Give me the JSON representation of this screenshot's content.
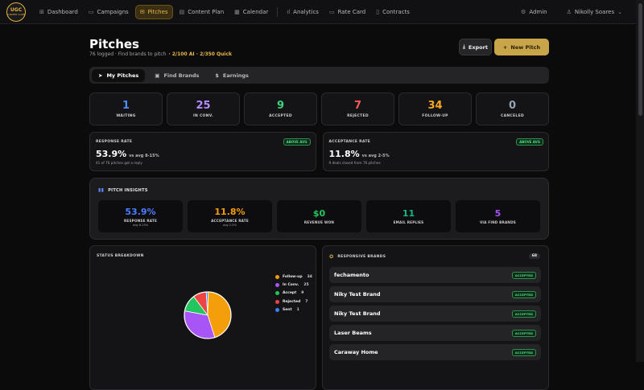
{
  "logo": {
    "line1": "UGC",
    "line2": "CAREER CORE"
  },
  "nav": [
    {
      "label": "Dashboard",
      "icon": "⊞"
    },
    {
      "label": "Campaigns",
      "icon": "▭"
    },
    {
      "label": "Pitches",
      "icon": "✉"
    },
    {
      "label": "Content Plan",
      "icon": "▤"
    },
    {
      "label": "Calendar",
      "icon": "▦"
    },
    {
      "label": "Analytics",
      "icon": "ıl"
    },
    {
      "label": "Rate Card",
      "icon": "▭"
    },
    {
      "label": "Contracts",
      "icon": "▯"
    }
  ],
  "admin_label": "Admin",
  "user_label": "Nikolly Soares",
  "user_caret": "⌄",
  "header": {
    "title": "Pitches",
    "subtitle": "76 logged · Find brands to pitch",
    "quota": "· 2/100 AI · 2/350 Quick",
    "export_label": "Export",
    "new_label": "New Pitch"
  },
  "tabs": [
    {
      "label": "My Pitches",
      "icon": "➤"
    },
    {
      "label": "Find Brands",
      "icon": "▣"
    },
    {
      "label": "Earnings",
      "icon": "$"
    }
  ],
  "stats": [
    {
      "value": "1",
      "label": "WAITING",
      "color": "#4d8dff"
    },
    {
      "value": "25",
      "label": "IN CONV.",
      "color": "#b28bff"
    },
    {
      "value": "9",
      "label": "ACCEPTED",
      "color": "#3fd37a"
    },
    {
      "value": "7",
      "label": "REJECTED",
      "color": "#ff5a5a"
    },
    {
      "value": "34",
      "label": "FOLLOW-UP",
      "color": "#f5a623"
    },
    {
      "value": "0",
      "label": "CANCELED",
      "color": "#9aa3b2"
    }
  ],
  "rates": [
    {
      "label": "RESPONSE RATE",
      "badge": "ABOVE AVG",
      "value": "53.9%",
      "compare": "vs avg 8-15%",
      "note": "41 of 76 pitches got a reply"
    },
    {
      "label": "ACCEPTANCE RATE",
      "badge": "ABOVE AVG",
      "value": "11.8%",
      "compare": "vs avg 2-5%",
      "note": "9 deals closed from 76 pitches"
    }
  ],
  "insights": {
    "title": "PITCH INSIGHTS",
    "items": [
      {
        "value": "53.9%",
        "label": "RESPONSE RATE",
        "sub": "avg 8-15%",
        "color": "#4d7dff"
      },
      {
        "value": "11.8%",
        "label": "ACCEPTANCE RATE",
        "sub": "avg 2-5%",
        "color": "#f59e0b"
      },
      {
        "value": "$0",
        "label": "REVENUE WON",
        "sub": "",
        "color": "#22c55e"
      },
      {
        "value": "11",
        "label": "EMAIL REPLIES",
        "sub": "",
        "color": "#10b981"
      },
      {
        "value": "5",
        "label": "VIA FIND BRANDS",
        "sub": "",
        "color": "#a855f7"
      }
    ]
  },
  "breakdown": {
    "title": "STATUS BREAKDOWN"
  },
  "chart_data": {
    "type": "pie",
    "series": [
      {
        "name": "Follow-up",
        "value": 34,
        "color": "#f59e0b"
      },
      {
        "name": "In Conv.",
        "value": 25,
        "color": "#a855f7"
      },
      {
        "name": "Accept",
        "value": 9,
        "color": "#22c55e"
      },
      {
        "name": "Rejected",
        "value": 7,
        "color": "#ef4444"
      },
      {
        "name": "Sent",
        "value": 1,
        "color": "#3b82f6"
      }
    ]
  },
  "brands": {
    "title": "RESPONSIVE BRANDS",
    "count": "68",
    "items": [
      {
        "name": "fechamento",
        "status": "ACCEPTED"
      },
      {
        "name": "Niky Test Brand",
        "status": "ACCEPTED"
      },
      {
        "name": "Niky Test Brand",
        "status": "ACCEPTED"
      },
      {
        "name": "Laser Beams",
        "status": "ACCEPTED"
      },
      {
        "name": "Caraway Home",
        "status": "ACCEPTED"
      }
    ]
  }
}
